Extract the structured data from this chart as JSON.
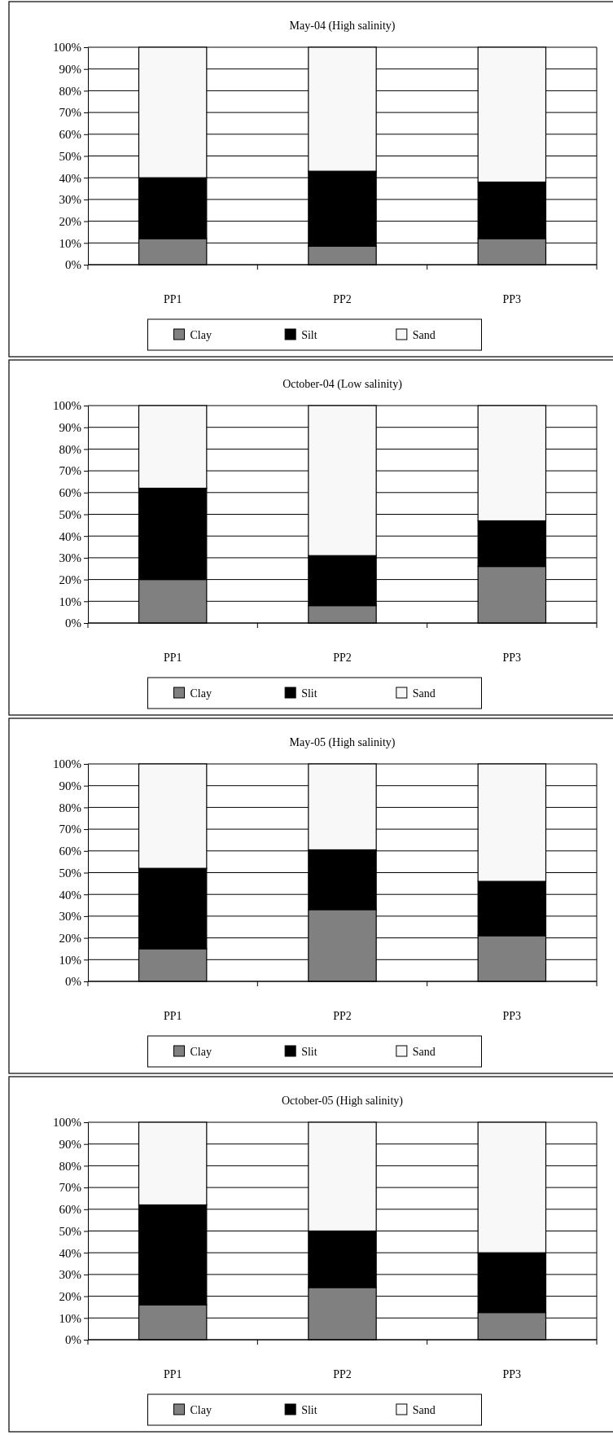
{
  "chart_data": [
    {
      "type": "bar",
      "title": "May-04 (High salinity)",
      "categories": [
        "PP1",
        "PP2",
        "PP3"
      ],
      "stacked": true,
      "grid": "y",
      "legend": "bottom",
      "ylim": [
        0,
        100
      ],
      "yticks": [
        {
          "value": 0,
          "label": "0%"
        },
        {
          "value": 10,
          "label": "10%"
        },
        {
          "value": 20,
          "label": "20%"
        },
        {
          "value": 30,
          "label": "30%"
        },
        {
          "value": 40,
          "label": "40%"
        },
        {
          "value": 50,
          "label": "50%"
        },
        {
          "value": 60,
          "label": "60%"
        },
        {
          "value": 70,
          "label": "70%"
        },
        {
          "value": 80,
          "label": "80%"
        },
        {
          "value": 90,
          "label": "90%"
        },
        {
          "value": 100,
          "label": "100%"
        }
      ],
      "series": [
        {
          "name": "Clay",
          "color": "#808080",
          "values": [
            12,
            8.5,
            12
          ]
        },
        {
          "name": "Silt",
          "color": "#000000",
          "values": [
            28,
            34.5,
            26
          ]
        },
        {
          "name": "Sand",
          "color": "#f8f8f8",
          "values": [
            60,
            57,
            62
          ]
        }
      ]
    },
    {
      "type": "bar",
      "title": "October-04 (Low salinity)",
      "categories": [
        "PP1",
        "PP2",
        "PP3"
      ],
      "stacked": true,
      "grid": "y",
      "legend": "bottom",
      "ylim": [
        0,
        100
      ],
      "yticks": [
        {
          "value": 0,
          "label": "0%"
        },
        {
          "value": 10,
          "label": "10%"
        },
        {
          "value": 20,
          "label": "20%"
        },
        {
          "value": 30,
          "label": "30%"
        },
        {
          "value": 40,
          "label": "40%"
        },
        {
          "value": 50,
          "label": "50%"
        },
        {
          "value": 60,
          "label": "60%"
        },
        {
          "value": 70,
          "label": "70%"
        },
        {
          "value": 80,
          "label": "80%"
        },
        {
          "value": 90,
          "label": "90%"
        },
        {
          "value": 100,
          "label": "100%"
        }
      ],
      "series": [
        {
          "name": "Clay",
          "color": "#808080",
          "values": [
            20,
            8,
            26
          ]
        },
        {
          "name": "Slit",
          "color": "#000000",
          "values": [
            42,
            23,
            21
          ]
        },
        {
          "name": "Sand",
          "color": "#f8f8f8",
          "values": [
            38,
            69,
            53
          ]
        }
      ]
    },
    {
      "type": "bar",
      "title": "May-05 (High salinity)",
      "categories": [
        "PP1",
        "PP2",
        "PP3"
      ],
      "stacked": true,
      "grid": "y",
      "legend": "bottom",
      "ylim": [
        0,
        100
      ],
      "yticks": [
        {
          "value": 0,
          "label": "0%"
        },
        {
          "value": 10,
          "label": "10%"
        },
        {
          "value": 20,
          "label": "20%"
        },
        {
          "value": 30,
          "label": "30%"
        },
        {
          "value": 40,
          "label": "40%"
        },
        {
          "value": 50,
          "label": "50%"
        },
        {
          "value": 60,
          "label": "60%"
        },
        {
          "value": 70,
          "label": "70%"
        },
        {
          "value": 80,
          "label": "80%"
        },
        {
          "value": 90,
          "label": "90%"
        },
        {
          "value": 100,
          "label": "100%"
        }
      ],
      "series": [
        {
          "name": "Clay",
          "color": "#808080",
          "values": [
            15,
            33,
            21
          ]
        },
        {
          "name": "Slit",
          "color": "#000000",
          "values": [
            37,
            27.5,
            25
          ]
        },
        {
          "name": "Sand",
          "color": "#f8f8f8",
          "values": [
            48,
            39.5,
            54
          ]
        }
      ]
    },
    {
      "type": "bar",
      "title": "October-05 (High salinity)",
      "categories": [
        "PP1",
        "PP2",
        "PP3"
      ],
      "stacked": true,
      "grid": "y",
      "legend": "bottom",
      "ylim": [
        0,
        100
      ],
      "yticks": [
        {
          "value": 0,
          "label": "0%"
        },
        {
          "value": 10,
          "label": "10%"
        },
        {
          "value": 20,
          "label": "20%"
        },
        {
          "value": 30,
          "label": "30%"
        },
        {
          "value": 40,
          "label": "40%"
        },
        {
          "value": 50,
          "label": "50%"
        },
        {
          "value": 60,
          "label": "60%"
        },
        {
          "value": 70,
          "label": "70%"
        },
        {
          "value": 80,
          "label": "80%"
        },
        {
          "value": 90,
          "label": "90%"
        },
        {
          "value": 100,
          "label": "100%"
        }
      ],
      "series": [
        {
          "name": "Clay",
          "color": "#808080",
          "values": [
            16,
            24,
            12.5
          ]
        },
        {
          "name": "Slit",
          "color": "#000000",
          "values": [
            46,
            26,
            27.5
          ]
        },
        {
          "name": "Sand",
          "color": "#f8f8f8",
          "values": [
            38,
            50,
            60
          ]
        }
      ]
    }
  ]
}
